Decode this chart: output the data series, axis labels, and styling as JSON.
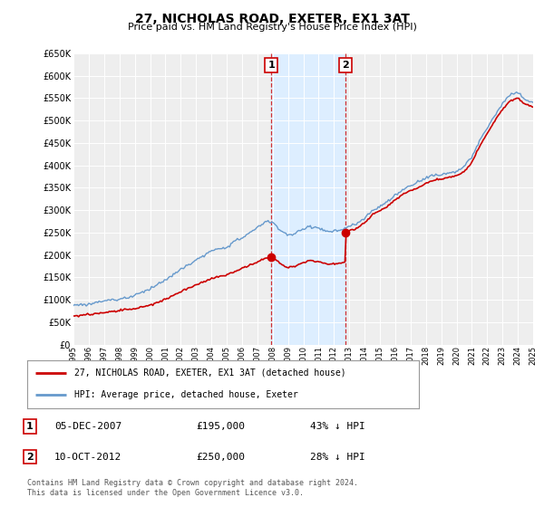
{
  "title": "27, NICHOLAS ROAD, EXETER, EX1 3AT",
  "subtitle": "Price paid vs. HM Land Registry's House Price Index (HPI)",
  "ytick_values": [
    0,
    50000,
    100000,
    150000,
    200000,
    250000,
    300000,
    350000,
    400000,
    450000,
    500000,
    550000,
    600000,
    650000
  ],
  "ylim": [
    0,
    650000
  ],
  "xlim_start": 1995,
  "xlim_end": 2025,
  "xticks": [
    1995,
    1996,
    1997,
    1998,
    1999,
    2000,
    2001,
    2002,
    2003,
    2004,
    2005,
    2006,
    2007,
    2008,
    2009,
    2010,
    2011,
    2012,
    2013,
    2014,
    2015,
    2016,
    2017,
    2018,
    2019,
    2020,
    2021,
    2022,
    2023,
    2024,
    2025
  ],
  "purchase1_date": 2007.92,
  "purchase1_price": 195000,
  "purchase2_date": 2012.78,
  "purchase2_price": 250000,
  "hpi_color": "#6699cc",
  "price_color": "#cc0000",
  "highlight_color": "#ddeeff",
  "legend_label1": "27, NICHOLAS ROAD, EXETER, EX1 3AT (detached house)",
  "legend_label2": "HPI: Average price, detached house, Exeter",
  "annotation1_date": "05-DEC-2007",
  "annotation1_price": "£195,000",
  "annotation1_hpi": "43% ↓ HPI",
  "annotation2_date": "10-OCT-2012",
  "annotation2_price": "£250,000",
  "annotation2_hpi": "28% ↓ HPI",
  "footer": "Contains HM Land Registry data © Crown copyright and database right 2024.\nThis data is licensed under the Open Government Licence v3.0.",
  "background_color": "#ffffff",
  "plot_bg_color": "#eeeeee"
}
